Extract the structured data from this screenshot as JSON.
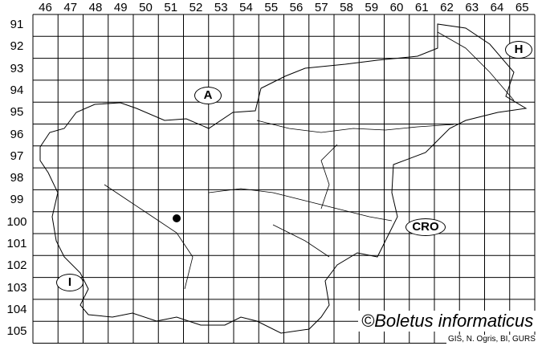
{
  "map": {
    "columns": [
      "46",
      "47",
      "48",
      "49",
      "50",
      "51",
      "52",
      "53",
      "54",
      "55",
      "56",
      "57",
      "58",
      "59",
      "60",
      "61",
      "62",
      "63",
      "64",
      "65"
    ],
    "rows": [
      "91",
      "92",
      "93",
      "94",
      "95",
      "96",
      "97",
      "98",
      "99",
      "100",
      "101",
      "102",
      "103",
      "104",
      "105"
    ],
    "countries": {
      "austria": "A",
      "hungary": "H",
      "croatia": "CRO",
      "italy": "I"
    },
    "occurrence_points": [
      {
        "column": "51",
        "row": "100"
      }
    ],
    "credit": "©Boletus informaticus",
    "source": "GIS, N. Ogris, BI, GURS"
  }
}
